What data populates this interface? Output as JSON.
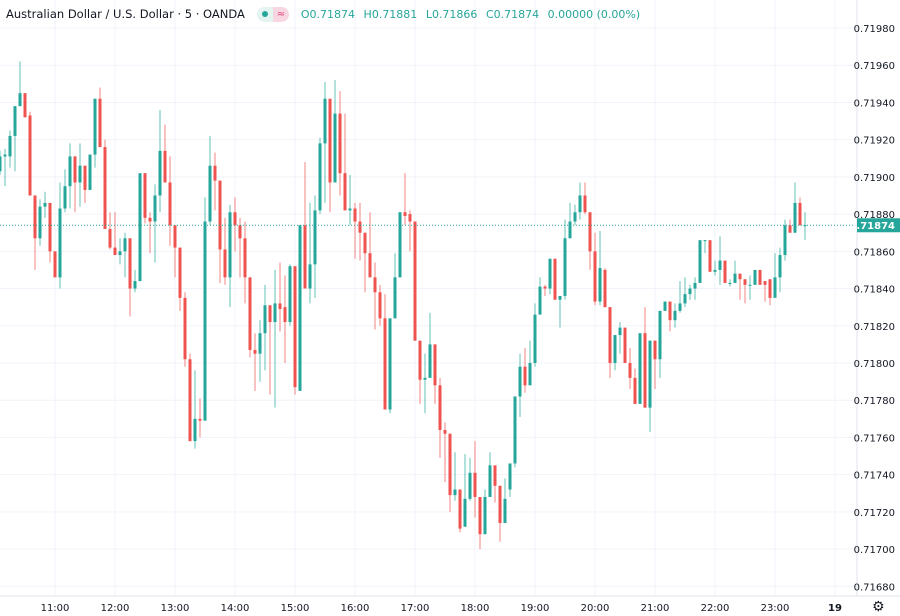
{
  "header": {
    "title": "Australian Dollar / U.S. Dollar · 5 · OANDA",
    "open": "O0.71874",
    "high": "H0.71881",
    "low": "L0.71866",
    "close": "C0.71874",
    "change": "0.00000 (0.00%)"
  },
  "colors": {
    "up": "#26a69a",
    "down": "#ef5350",
    "grid": "#f0f3fa",
    "price_label_bg": "#26a69a"
  },
  "icons": {
    "status": "market-open-dot-icon",
    "wave": "wave-icon",
    "settings": "gear-icon"
  },
  "chart_data": {
    "type": "candlestick",
    "title": "Australian Dollar / U.S. Dollar · 5 · OANDA",
    "interval": "5",
    "ylim": [
      0.7167,
      0.7199
    ],
    "y_ticks": [
      "0.71980",
      "0.71960",
      "0.71940",
      "0.71920",
      "0.71900",
      "0.71880",
      "0.71860",
      "0.71840",
      "0.71820",
      "0.71800",
      "0.71780",
      "0.71760",
      "0.71740",
      "0.71720",
      "0.71700",
      "0.71680"
    ],
    "x_ticks": [
      "11:00",
      "12:00",
      "13:00",
      "14:00",
      "15:00",
      "16:00",
      "17:00",
      "18:00",
      "19:00",
      "20:00",
      "21:00",
      "22:00",
      "23:00",
      "19"
    ],
    "last_price": "0.71874",
    "grid": true,
    "candles_fields": [
      "time",
      "open",
      "high",
      "low",
      "close"
    ],
    "candles": [
      [
        "10:05",
        0.71903,
        0.71914,
        0.71901,
        0.71911
      ],
      [
        "10:10",
        0.71911,
        0.71915,
        0.71895,
        0.71912
      ],
      [
        "10:15",
        0.71911,
        0.71925,
        0.71905,
        0.71922
      ],
      [
        "10:20",
        0.71922,
        0.71938,
        0.71903,
        0.71938
      ],
      [
        "10:25",
        0.71938,
        0.71962,
        0.71938,
        0.71945
      ],
      [
        "10:30",
        0.71945,
        0.71945,
        0.71932,
        0.71932
      ],
      [
        "10:35",
        0.71933,
        0.71935,
        0.7189,
        0.7189
      ],
      [
        "10:40",
        0.7189,
        0.7189,
        0.7185,
        0.71867
      ],
      [
        "10:45",
        0.71867,
        0.71888,
        0.71863,
        0.71884
      ],
      [
        "10:50",
        0.71884,
        0.71892,
        0.71878,
        0.71886
      ],
      [
        "10:55",
        0.71886,
        0.71886,
        0.71854,
        0.7186
      ],
      [
        "11:00",
        0.7186,
        0.7186,
        0.71846,
        0.71846
      ],
      [
        "11:05",
        0.71846,
        0.71897,
        0.7184,
        0.71883
      ],
      [
        "11:10",
        0.71883,
        0.71904,
        0.71881,
        0.71895
      ],
      [
        "11:15",
        0.71895,
        0.71918,
        0.71883,
        0.71911
      ],
      [
        "11:20",
        0.71911,
        0.71911,
        0.71881,
        0.71897
      ],
      [
        "11:25",
        0.71897,
        0.71918,
        0.71884,
        0.71906
      ],
      [
        "11:30",
        0.71906,
        0.71906,
        0.71886,
        0.71893
      ],
      [
        "11:35",
        0.71893,
        0.71912,
        0.71893,
        0.71912
      ],
      [
        "11:40",
        0.71912,
        0.71942,
        0.71905,
        0.71942
      ],
      [
        "11:45",
        0.71942,
        0.71948,
        0.71916,
        0.71916
      ],
      [
        "11:50",
        0.71916,
        0.7192,
        0.71872,
        0.71872
      ],
      [
        "11:55",
        0.71872,
        0.71881,
        0.71861,
        0.71862
      ],
      [
        "12:00",
        0.71862,
        0.71881,
        0.71858,
        0.71858
      ],
      [
        "12:05",
        0.71858,
        0.71867,
        0.71853,
        0.7186
      ],
      [
        "12:10",
        0.7186,
        0.7187,
        0.71846,
        0.71867
      ],
      [
        "12:15",
        0.71867,
        0.71867,
        0.71825,
        0.7184
      ],
      [
        "12:20",
        0.7184,
        0.7185,
        0.71838,
        0.71844
      ],
      [
        "12:25",
        0.71844,
        0.71902,
        0.71844,
        0.71902
      ],
      [
        "12:30",
        0.71902,
        0.71902,
        0.71875,
        0.71878
      ],
      [
        "12:35",
        0.71878,
        0.71881,
        0.71859,
        0.71876
      ],
      [
        "12:40",
        0.71876,
        0.71896,
        0.71854,
        0.7189
      ],
      [
        "12:45",
        0.7189,
        0.71936,
        0.71881,
        0.71914
      ],
      [
        "12:50",
        0.71914,
        0.71928,
        0.71897,
        0.71897
      ],
      [
        "12:55",
        0.71897,
        0.71911,
        0.71863,
        0.71874
      ],
      [
        "13:00",
        0.71874,
        0.71874,
        0.71846,
        0.71862
      ],
      [
        "13:05",
        0.71862,
        0.71862,
        0.71828,
        0.71835
      ],
      [
        "13:10",
        0.71835,
        0.71838,
        0.71798,
        0.71802
      ],
      [
        "13:15",
        0.71802,
        0.71805,
        0.71758,
        0.71758
      ],
      [
        "13:20",
        0.71758,
        0.71796,
        0.71754,
        0.7177
      ],
      [
        "13:25",
        0.7177,
        0.71781,
        0.7176,
        0.71769
      ],
      [
        "13:30",
        0.71769,
        0.71889,
        0.71769,
        0.71876
      ],
      [
        "13:35",
        0.71876,
        0.71922,
        0.71874,
        0.71906
      ],
      [
        "13:40",
        0.71906,
        0.71913,
        0.71882,
        0.71898
      ],
      [
        "13:45",
        0.71898,
        0.71898,
        0.71843,
        0.71861
      ],
      [
        "13:50",
        0.71861,
        0.71878,
        0.71842,
        0.71846
      ],
      [
        "13:55",
        0.71846,
        0.71885,
        0.7183,
        0.71881
      ],
      [
        "14:00",
        0.71881,
        0.71889,
        0.7186,
        0.71874
      ],
      [
        "14:05",
        0.71874,
        0.71878,
        0.71846,
        0.71867
      ],
      [
        "14:10",
        0.71867,
        0.71876,
        0.71832,
        0.71846
      ],
      [
        "14:15",
        0.71846,
        0.71846,
        0.71803,
        0.71807
      ],
      [
        "14:20",
        0.71807,
        0.71816,
        0.71785,
        0.71805
      ],
      [
        "14:25",
        0.71805,
        0.71823,
        0.7179,
        0.71816
      ],
      [
        "14:30",
        0.71816,
        0.71842,
        0.71796,
        0.71831
      ],
      [
        "14:35",
        0.71831,
        0.71831,
        0.71783,
        0.71822
      ],
      [
        "14:40",
        0.71822,
        0.7185,
        0.71776,
        0.71832
      ],
      [
        "14:45",
        0.71832,
        0.71854,
        0.71817,
        0.71829
      ],
      [
        "14:50",
        0.7183,
        0.71847,
        0.718,
        0.71822
      ],
      [
        "14:55",
        0.71822,
        0.71853,
        0.7182,
        0.71852
      ],
      [
        "15:00",
        0.71852,
        0.71852,
        0.71783,
        0.71787
      ],
      [
        "15:05",
        0.71785,
        0.71874,
        0.71785,
        0.71874
      ],
      [
        "15:10",
        0.71874,
        0.71908,
        0.7184,
        0.7184
      ],
      [
        "15:15",
        0.7184,
        0.71886,
        0.71832,
        0.71853
      ],
      [
        "15:20",
        0.71853,
        0.7189,
        0.71835,
        0.71882
      ],
      [
        "15:25",
        0.71882,
        0.71921,
        0.7188,
        0.71918
      ],
      [
        "15:30",
        0.71918,
        0.71951,
        0.71886,
        0.71942
      ],
      [
        "15:35",
        0.71942,
        0.71942,
        0.71881,
        0.71897
      ],
      [
        "15:40",
        0.71897,
        0.71952,
        0.71897,
        0.71934
      ],
      [
        "15:45",
        0.71934,
        0.71946,
        0.7189,
        0.71902
      ],
      [
        "15:50",
        0.71902,
        0.71934,
        0.71882,
        0.71882
      ],
      [
        "15:55",
        0.71882,
        0.71901,
        0.71874,
        0.71883
      ],
      [
        "16:00",
        0.71883,
        0.71886,
        0.71856,
        0.71876
      ],
      [
        "16:05",
        0.71876,
        0.71886,
        0.71855,
        0.7187
      ],
      [
        "16:10",
        0.7187,
        0.7187,
        0.71838,
        0.71859
      ],
      [
        "16:15",
        0.71859,
        0.71881,
        0.71846,
        0.71846
      ],
      [
        "16:20",
        0.71846,
        0.71854,
        0.71818,
        0.71838
      ],
      [
        "16:25",
        0.71838,
        0.71842,
        0.7182,
        0.71824
      ],
      [
        "16:30",
        0.71824,
        0.71837,
        0.71775,
        0.71775
      ],
      [
        "16:35",
        0.71775,
        0.71824,
        0.71773,
        0.71824
      ],
      [
        "16:40",
        0.71824,
        0.71859,
        0.71824,
        0.71846
      ],
      [
        "16:45",
        0.71846,
        0.71881,
        0.71846,
        0.71881
      ],
      [
        "16:50",
        0.71881,
        0.71902,
        0.71874,
        0.71879
      ],
      [
        "16:55",
        0.7188,
        0.71882,
        0.7186,
        0.71876
      ],
      [
        "17:00",
        0.71876,
        0.71876,
        0.71812,
        0.71812
      ],
      [
        "17:05",
        0.71812,
        0.71812,
        0.71778,
        0.71791
      ],
      [
        "17:10",
        0.71791,
        0.71805,
        0.71773,
        0.71792
      ],
      [
        "17:15",
        0.71792,
        0.71827,
        0.71792,
        0.7181
      ],
      [
        "17:20",
        0.7181,
        0.7181,
        0.71778,
        0.71788
      ],
      [
        "17:25",
        0.71788,
        0.71792,
        0.71749,
        0.71764
      ],
      [
        "17:30",
        0.71764,
        0.71768,
        0.71736,
        0.71762
      ],
      [
        "17:35",
        0.71762,
        0.71762,
        0.7172,
        0.71729
      ],
      [
        "17:40",
        0.71729,
        0.71752,
        0.71726,
        0.71732
      ],
      [
        "17:45",
        0.71732,
        0.71732,
        0.71709,
        0.71711
      ],
      [
        "17:50",
        0.71712,
        0.71751,
        0.71712,
        0.71727
      ],
      [
        "17:55",
        0.71727,
        0.71749,
        0.71726,
        0.71741
      ],
      [
        "18:00",
        0.71741,
        0.71758,
        0.71717,
        0.71728
      ],
      [
        "18:05",
        0.71728,
        0.71728,
        0.717,
        0.71708
      ],
      [
        "18:10",
        0.71708,
        0.71732,
        0.71708,
        0.71728
      ],
      [
        "18:15",
        0.71728,
        0.71752,
        0.71728,
        0.71745
      ],
      [
        "18:20",
        0.71745,
        0.71745,
        0.71725,
        0.71734
      ],
      [
        "18:25",
        0.71734,
        0.71734,
        0.71704,
        0.71714
      ],
      [
        "18:30",
        0.71714,
        0.71738,
        0.71714,
        0.71727
      ],
      [
        "18:35",
        0.71732,
        0.71746,
        0.71728,
        0.71746
      ],
      [
        "18:40",
        0.71746,
        0.71782,
        0.71744,
        0.71782
      ],
      [
        "18:45",
        0.71782,
        0.71805,
        0.71771,
        0.71798
      ],
      [
        "18:50",
        0.71798,
        0.71808,
        0.71784,
        0.71788
      ],
      [
        "18:55",
        0.71788,
        0.71812,
        0.71788,
        0.718
      ],
      [
        "19:00",
        0.718,
        0.71832,
        0.71798,
        0.71826
      ],
      [
        "19:05",
        0.71826,
        0.71846,
        0.71826,
        0.71841
      ],
      [
        "19:10",
        0.71841,
        0.71842,
        0.71836,
        0.7184
      ],
      [
        "19:15",
        0.7184,
        0.71856,
        0.71837,
        0.71856
      ],
      [
        "19:20",
        0.71856,
        0.71856,
        0.71834,
        0.71834
      ],
      [
        "19:25",
        0.71834,
        0.71836,
        0.71819,
        0.71836
      ],
      [
        "19:30",
        0.71836,
        0.71877,
        0.71834,
        0.71867
      ],
      [
        "19:35",
        0.71867,
        0.71886,
        0.71867,
        0.71876
      ],
      [
        "19:40",
        0.71876,
        0.71885,
        0.71874,
        0.71881
      ],
      [
        "19:45",
        0.71881,
        0.71897,
        0.71877,
        0.7189
      ],
      [
        "19:50",
        0.7189,
        0.71897,
        0.7188,
        0.71881
      ],
      [
        "19:55",
        0.71881,
        0.71881,
        0.7185,
        0.7186
      ],
      [
        "20:00",
        0.7186,
        0.7187,
        0.71831,
        0.71833
      ],
      [
        "20:05",
        0.71833,
        0.71871,
        0.71831,
        0.71851
      ],
      [
        "20:10",
        0.7185,
        0.71851,
        0.7183,
        0.7183
      ],
      [
        "20:15",
        0.7183,
        0.7183,
        0.71792,
        0.718
      ],
      [
        "20:20",
        0.718,
        0.71815,
        0.71796,
        0.71815
      ],
      [
        "20:25",
        0.71815,
        0.71822,
        0.71805,
        0.71819
      ],
      [
        "20:30",
        0.71819,
        0.71819,
        0.718,
        0.718
      ],
      [
        "20:35",
        0.718,
        0.71808,
        0.71786,
        0.71792
      ],
      [
        "20:40",
        0.71792,
        0.71797,
        0.71778,
        0.71778
      ],
      [
        "20:45",
        0.71778,
        0.71816,
        0.71778,
        0.71816
      ],
      [
        "20:50",
        0.71816,
        0.7183,
        0.71776,
        0.71776
      ],
      [
        "20:55",
        0.71776,
        0.71812,
        0.71763,
        0.71812
      ],
      [
        "21:00",
        0.71812,
        0.71812,
        0.71786,
        0.71802
      ],
      [
        "21:05",
        0.71802,
        0.71828,
        0.71792,
        0.71828
      ],
      [
        "21:10",
        0.71828,
        0.71833,
        0.71828,
        0.71833
      ],
      [
        "21:15",
        0.71833,
        0.71833,
        0.71817,
        0.71823
      ],
      [
        "21:20",
        0.71823,
        0.71832,
        0.71819,
        0.71828
      ],
      [
        "21:25",
        0.71828,
        0.71844,
        0.71827,
        0.71832
      ],
      [
        "21:30",
        0.71832,
        0.71846,
        0.7183,
        0.71837
      ],
      [
        "21:35",
        0.71837,
        0.71842,
        0.71834,
        0.7184
      ],
      [
        "21:40",
        0.7184,
        0.71846,
        0.71834,
        0.71843
      ],
      [
        "21:45",
        0.71843,
        0.71866,
        0.71843,
        0.71866
      ],
      [
        "21:50",
        0.71866,
        0.71866,
        0.71859,
        0.71866
      ],
      [
        "21:55",
        0.71866,
        0.71866,
        0.71849,
        0.71849
      ],
      [
        "22:00",
        0.71849,
        0.71855,
        0.71847,
        0.7185
      ],
      [
        "22:05",
        0.7185,
        0.71868,
        0.71842,
        0.71855
      ],
      [
        "22:10",
        0.71855,
        0.71855,
        0.71843,
        0.71843
      ],
      [
        "22:15",
        0.71843,
        0.71845,
        0.71841,
        0.71843
      ],
      [
        "22:20",
        0.71843,
        0.71855,
        0.71843,
        0.71848
      ],
      [
        "22:25",
        0.71848,
        0.71848,
        0.71834,
        0.71845
      ],
      [
        "22:30",
        0.71845,
        0.71845,
        0.71832,
        0.71842
      ],
      [
        "22:35",
        0.71842,
        0.71847,
        0.71834,
        0.71842
      ],
      [
        "22:40",
        0.71842,
        0.7185,
        0.71842,
        0.7185
      ],
      [
        "22:45",
        0.7185,
        0.7185,
        0.71842,
        0.71842
      ],
      [
        "22:50",
        0.71844,
        0.71844,
        0.71833,
        0.71842
      ],
      [
        "22:55",
        0.71845,
        0.71845,
        0.71831,
        0.71835
      ],
      [
        "23:00",
        0.71835,
        0.71859,
        0.71835,
        0.71846
      ],
      [
        "23:05",
        0.71846,
        0.71862,
        0.71838,
        0.71858
      ],
      [
        "23:10",
        0.71858,
        0.71877,
        0.71855,
        0.71874
      ],
      [
        "23:15",
        0.71874,
        0.71877,
        0.7187,
        0.7187
      ],
      [
        "23:20",
        0.7187,
        0.71897,
        0.7187,
        0.71886
      ],
      [
        "23:25",
        0.71886,
        0.71889,
        0.71874,
        0.71874
      ],
      [
        "23:30",
        0.71874,
        0.71881,
        0.71866,
        0.71874
      ]
    ]
  }
}
